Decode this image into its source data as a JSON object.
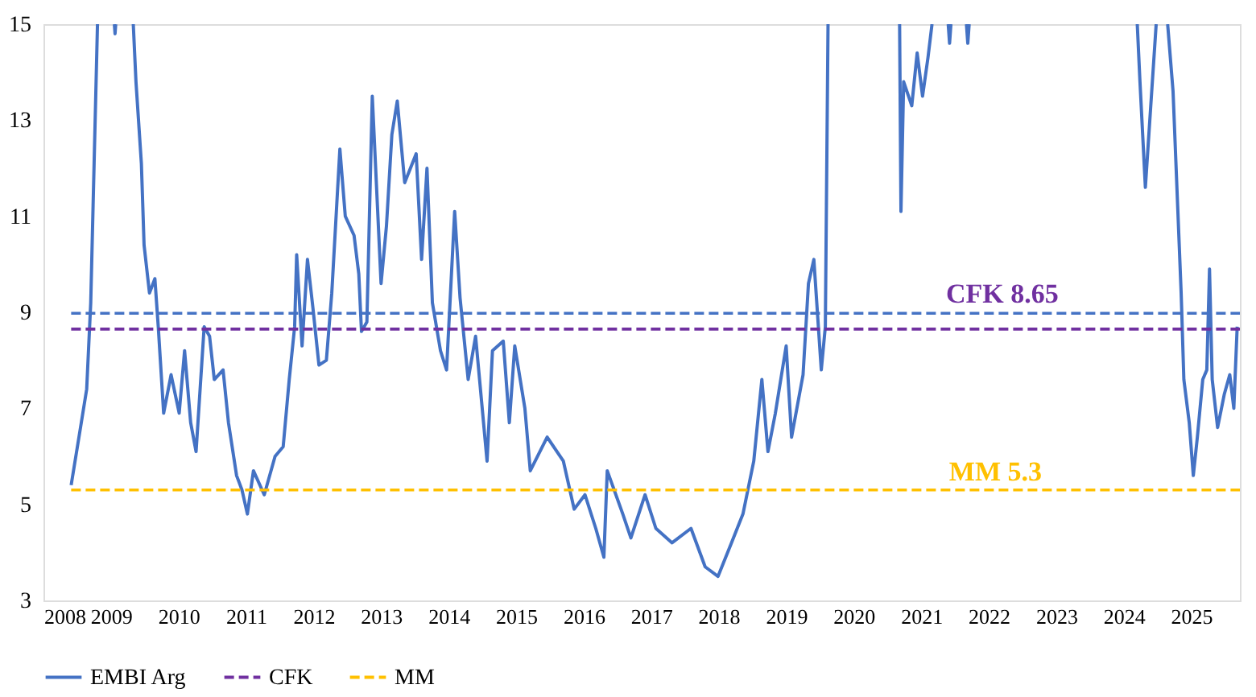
{
  "chart_data": {
    "type": "line",
    "legend": "bottom",
    "grid": false,
    "marker": "none",
    "xlim": [
      2008,
      2025.72
    ],
    "xticks": [
      2008,
      2009,
      2010,
      2011,
      2012,
      2013,
      2014,
      2015,
      2016,
      2017,
      2018,
      2019,
      2020,
      2021,
      2022,
      2023,
      2024,
      2025
    ],
    "ylim": [
      3,
      15
    ],
    "yticks": [
      3,
      5,
      7,
      9,
      11,
      13,
      15
    ],
    "annotations": [
      {
        "text": "CFK 8.65",
        "x": 2022.2,
        "y": 9.0
      },
      {
        "text": "MM  5.3",
        "x": 2022.1,
        "y": 5.3
      }
    ],
    "series": [
      {
        "name": "EMBI Arg",
        "color": "#4472c4",
        "line_style": "solid",
        "x": [
          2008.41,
          2008.56,
          2008.64,
          2008.7,
          2008.75,
          2008.8,
          2008.81,
          2009.05,
          2009.06,
          2009.07,
          2009.08,
          2009.33,
          2009.37,
          2009.45,
          2009.49,
          2009.57,
          2009.65,
          2009.7,
          2009.78,
          2009.89,
          2010.01,
          2010.09,
          2010.18,
          2010.26,
          2010.38,
          2010.46,
          2010.53,
          2010.66,
          2010.74,
          2010.86,
          2010.94,
          2011.02,
          2011.11,
          2011.27,
          2011.43,
          2011.55,
          2011.64,
          2011.72,
          2011.75,
          2011.83,
          2011.91,
          2011.99,
          2012.08,
          2012.19,
          2012.27,
          2012.39,
          2012.47,
          2012.6,
          2012.67,
          2012.71,
          2012.79,
          2012.87,
          2013.0,
          2013.08,
          2013.16,
          2013.24,
          2013.35,
          2013.52,
          2013.6,
          2013.68,
          2013.76,
          2013.88,
          2013.97,
          2014.09,
          2014.17,
          2014.29,
          2014.4,
          2014.57,
          2014.65,
          2014.81,
          2014.9,
          2014.98,
          2015.13,
          2015.21,
          2015.46,
          2015.7,
          2015.86,
          2016.02,
          2016.18,
          2016.3,
          2016.35,
          2016.58,
          2016.7,
          2016.91,
          2017.07,
          2017.31,
          2017.59,
          2017.8,
          2017.99,
          2018.19,
          2018.36,
          2018.52,
          2018.64,
          2018.73,
          2018.84,
          2019.0,
          2019.08,
          2019.25,
          2019.33,
          2019.41,
          2019.52,
          2019.58,
          2019.62,
          2019.63,
          2020.68,
          2020.7,
          2020.74,
          2020.86,
          2020.94,
          2021.02,
          2021.1,
          2021.16,
          2021.17,
          2021.4,
          2021.42,
          2021.44,
          2021.45,
          2021.67,
          2021.69,
          2021.71,
          2021.72,
          2024.2,
          2024.24,
          2024.32,
          2024.4,
          2024.48,
          2024.49,
          2024.65,
          2024.73,
          2024.85,
          2024.89,
          2024.97,
          2025.03,
          2025.09,
          2025.17,
          2025.23,
          2025.27,
          2025.31,
          2025.39,
          2025.49,
          2025.57,
          2025.63,
          2025.68
        ],
        "values": [
          5.4,
          6.7,
          7.4,
          9.2,
          12.1,
          15,
          null,
          15,
          14.8,
          15,
          null,
          15,
          13.8,
          12.1,
          10.4,
          9.4,
          9.7,
          8.7,
          6.9,
          7.7,
          6.9,
          8.2,
          6.7,
          6.1,
          8.7,
          8.5,
          7.6,
          7.8,
          6.7,
          5.6,
          5.3,
          4.8,
          5.7,
          5.2,
          6.0,
          6.2,
          7.6,
          8.7,
          10.2,
          8.3,
          10.1,
          9.1,
          7.9,
          8.0,
          9.4,
          12.4,
          11.0,
          10.6,
          9.8,
          8.6,
          8.8,
          13.5,
          9.6,
          10.8,
          12.7,
          13.4,
          11.7,
          12.3,
          10.1,
          12.0,
          9.2,
          8.2,
          7.8,
          11.1,
          9.3,
          7.6,
          8.5,
          5.9,
          8.2,
          8.4,
          6.7,
          8.3,
          7.0,
          5.7,
          6.4,
          5.9,
          4.9,
          5.2,
          4.5,
          3.9,
          5.7,
          4.8,
          4.3,
          5.2,
          4.5,
          4.2,
          4.5,
          3.7,
          3.5,
          4.2,
          4.8,
          5.9,
          7.6,
          6.1,
          6.9,
          8.3,
          6.4,
          7.7,
          9.6,
          10.1,
          7.8,
          8.7,
          15,
          null,
          15,
          11.1,
          13.8,
          13.3,
          14.4,
          13.5,
          14.3,
          15,
          null,
          15,
          14.6,
          15,
          null,
          15,
          14.6,
          15,
          null,
          15,
          13.8,
          11.6,
          13.3,
          15,
          null,
          15,
          13.6,
          9.4,
          7.6,
          6.7,
          5.6,
          6.4,
          7.6,
          7.8,
          9.9,
          7.6,
          6.6,
          7.3,
          7.7,
          7.0,
          8.7
        ]
      },
      {
        "color": "#4472c4",
        "line_style": "dashed",
        "x": [
          2008.41,
          2025.72
        ],
        "values": [
          8.98,
          8.98
        ]
      },
      {
        "name": "CFK",
        "color": "#7030a0",
        "line_style": "dashed",
        "x": [
          2008.41,
          2025.72
        ],
        "values": [
          8.65,
          8.65
        ]
      },
      {
        "name": "MM",
        "color": "#ffc000",
        "line_style": "dashed",
        "x": [
          2008.41,
          2025.72
        ],
        "values": [
          5.3,
          5.3
        ]
      }
    ]
  }
}
